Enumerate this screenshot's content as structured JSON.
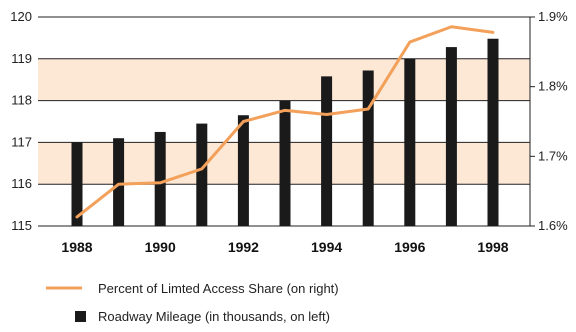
{
  "chart_data": {
    "type": "bar",
    "categories": [
      "1988",
      "1989",
      "1990",
      "1991",
      "1992",
      "1993",
      "1994",
      "1995",
      "1996",
      "1997",
      "1998"
    ],
    "x_tick_labels": [
      "1988",
      "1990",
      "1992",
      "1994",
      "1996",
      "1998"
    ],
    "series": [
      {
        "name": "Roadway Mileage (in thousands, on left)",
        "type": "bar",
        "axis": "left",
        "values": [
          117.0,
          117.1,
          117.25,
          117.45,
          117.65,
          118.0,
          118.58,
          118.72,
          119.0,
          119.28,
          119.48
        ]
      },
      {
        "name": "Percent of Limted Access Share (on right)",
        "type": "line",
        "axis": "right",
        "values": [
          1.613,
          1.66,
          1.662,
          1.682,
          1.75,
          1.766,
          1.76,
          1.768,
          1.864,
          1.886,
          1.878
        ]
      }
    ],
    "left_axis": {
      "ylim": [
        115,
        120
      ],
      "ticks": [
        "115",
        "116",
        "117",
        "118",
        "119",
        "120"
      ]
    },
    "right_axis": {
      "ylim": [
        1.6,
        1.9
      ],
      "ticks": [
        "1.6%",
        "1.7%",
        "1.8%",
        "1.9%"
      ]
    },
    "bands": [
      [
        116,
        117
      ],
      [
        118,
        119
      ]
    ],
    "grid": true,
    "legend_position": "bottom",
    "colors": {
      "bar": "#1a1a1a",
      "line": "#f2a05a",
      "band": "#fde8d6",
      "grid": "#222222"
    }
  }
}
